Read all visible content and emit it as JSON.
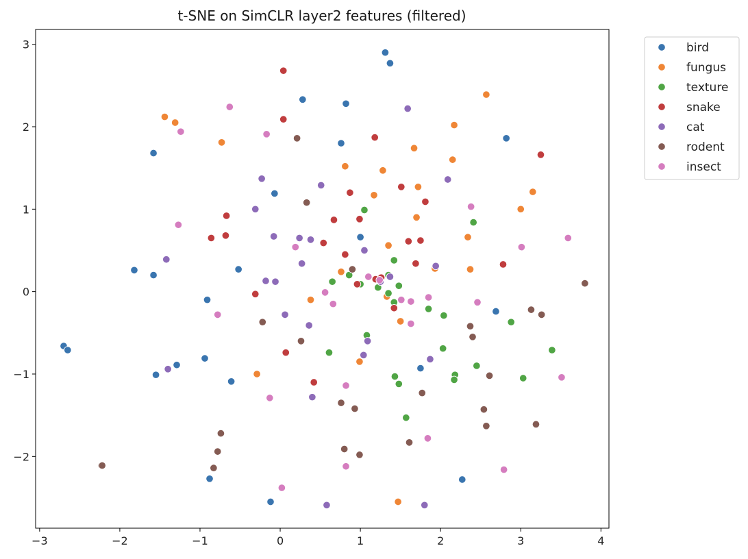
{
  "chart_data": {
    "type": "scatter",
    "title": "t-SNE on SimCLR layer2 features (filtered)",
    "xlabel": "",
    "ylabel": "",
    "xlim": [
      -3.05,
      4.1
    ],
    "ylim": [
      -2.87,
      3.18
    ],
    "xticks": [
      -3,
      -2,
      -1,
      0,
      1,
      2,
      3,
      4
    ],
    "yticks": [
      -2,
      -1,
      0,
      1,
      2,
      3
    ],
    "grid": false,
    "legend_position": "outside upper-right",
    "series": [
      {
        "name": "bird",
        "color": "#3a75af",
        "points": [
          [
            1.31,
            2.9
          ],
          [
            1.37,
            2.77
          ],
          [
            0.28,
            2.33
          ],
          [
            0.82,
            2.28
          ],
          [
            0.76,
            1.8
          ],
          [
            2.82,
            1.86
          ],
          [
            -1.58,
            1.68
          ],
          [
            -0.07,
            1.19
          ],
          [
            1.0,
            0.66
          ],
          [
            -1.82,
            0.26
          ],
          [
            -1.58,
            0.2
          ],
          [
            -0.52,
            0.27
          ],
          [
            -0.91,
            -0.1
          ],
          [
            2.69,
            -0.24
          ],
          [
            -0.94,
            -0.81
          ],
          [
            -1.55,
            -1.01
          ],
          [
            -1.29,
            -0.89
          ],
          [
            -0.61,
            -1.09
          ],
          [
            1.75,
            -0.93
          ],
          [
            -2.7,
            -0.66
          ],
          [
            -2.65,
            -0.71
          ],
          [
            -0.88,
            -2.27
          ],
          [
            -0.12,
            -2.55
          ],
          [
            2.27,
            -2.28
          ],
          [
            1.25,
            0.13
          ]
        ]
      },
      {
        "name": "fungus",
        "color": "#ef8636",
        "points": [
          [
            2.57,
            2.39
          ],
          [
            -1.44,
            2.12
          ],
          [
            -1.31,
            2.05
          ],
          [
            -0.73,
            1.81
          ],
          [
            2.17,
            2.02
          ],
          [
            1.67,
            1.74
          ],
          [
            2.15,
            1.6
          ],
          [
            0.81,
            1.52
          ],
          [
            1.28,
            1.47
          ],
          [
            1.72,
            1.27
          ],
          [
            1.17,
            1.17
          ],
          [
            3.15,
            1.21
          ],
          [
            3.0,
            1.0
          ],
          [
            1.7,
            0.9
          ],
          [
            2.34,
            0.66
          ],
          [
            1.35,
            0.56
          ],
          [
            0.76,
            0.24
          ],
          [
            1.93,
            0.28
          ],
          [
            2.37,
            0.27
          ],
          [
            0.38,
            -0.1
          ],
          [
            1.33,
            -0.06
          ],
          [
            1.5,
            -0.36
          ],
          [
            -0.29,
            -1.0
          ],
          [
            0.99,
            -0.85
          ],
          [
            1.47,
            -2.55
          ]
        ]
      },
      {
        "name": "texture",
        "color": "#50a545",
        "points": [
          [
            1.05,
            0.99
          ],
          [
            2.41,
            0.84
          ],
          [
            1.42,
            0.38
          ],
          [
            0.86,
            0.2
          ],
          [
            1.35,
            0.2
          ],
          [
            0.65,
            0.12
          ],
          [
            1.0,
            0.09
          ],
          [
            1.48,
            0.07
          ],
          [
            1.22,
            0.05
          ],
          [
            1.35,
            -0.02
          ],
          [
            1.42,
            -0.13
          ],
          [
            1.85,
            -0.21
          ],
          [
            2.04,
            -0.29
          ],
          [
            2.88,
            -0.37
          ],
          [
            1.08,
            -0.53
          ],
          [
            0.61,
            -0.74
          ],
          [
            2.03,
            -0.69
          ],
          [
            3.39,
            -0.71
          ],
          [
            2.45,
            -0.9
          ],
          [
            2.18,
            -1.01
          ],
          [
            1.43,
            -1.03
          ],
          [
            2.17,
            -1.07
          ],
          [
            3.03,
            -1.05
          ],
          [
            1.48,
            -1.12
          ],
          [
            1.57,
            -1.53
          ]
        ]
      },
      {
        "name": "snake",
        "color": "#c03d3e",
        "points": [
          [
            0.04,
            2.68
          ],
          [
            0.04,
            2.09
          ],
          [
            1.18,
            1.87
          ],
          [
            3.25,
            1.66
          ],
          [
            0.87,
            1.2
          ],
          [
            1.51,
            1.27
          ],
          [
            1.81,
            1.09
          ],
          [
            -0.67,
            0.92
          ],
          [
            0.67,
            0.87
          ],
          [
            0.99,
            0.88
          ],
          [
            -0.86,
            0.65
          ],
          [
            -0.68,
            0.68
          ],
          [
            0.54,
            0.59
          ],
          [
            1.6,
            0.61
          ],
          [
            1.75,
            0.62
          ],
          [
            0.81,
            0.45
          ],
          [
            2.78,
            0.33
          ],
          [
            1.69,
            0.34
          ],
          [
            1.19,
            0.15
          ],
          [
            1.26,
            0.17
          ],
          [
            0.96,
            0.09
          ],
          [
            -0.31,
            -0.03
          ],
          [
            1.42,
            -0.2
          ],
          [
            0.07,
            -0.74
          ],
          [
            0.42,
            -1.1
          ]
        ]
      },
      {
        "name": "cat",
        "color": "#8d6bb8",
        "points": [
          [
            1.59,
            2.22
          ],
          [
            2.09,
            1.36
          ],
          [
            -0.23,
            1.37
          ],
          [
            0.51,
            1.29
          ],
          [
            -0.31,
            1.0
          ],
          [
            0.24,
            0.65
          ],
          [
            0.38,
            0.63
          ],
          [
            -0.08,
            0.67
          ],
          [
            1.05,
            0.5
          ],
          [
            -1.42,
            0.39
          ],
          [
            0.27,
            0.34
          ],
          [
            1.94,
            0.31
          ],
          [
            -0.18,
            0.13
          ],
          [
            -0.06,
            0.12
          ],
          [
            1.25,
            0.12
          ],
          [
            1.37,
            0.18
          ],
          [
            0.06,
            -0.28
          ],
          [
            0.36,
            -0.41
          ],
          [
            1.09,
            -0.6
          ],
          [
            1.04,
            -0.77
          ],
          [
            1.87,
            -0.82
          ],
          [
            -1.4,
            -0.94
          ],
          [
            0.4,
            -1.28
          ],
          [
            0.58,
            -2.59
          ],
          [
            1.8,
            -2.59
          ]
        ]
      },
      {
        "name": "rodent",
        "color": "#845b53",
        "points": [
          [
            0.21,
            1.86
          ],
          [
            0.33,
            1.08
          ],
          [
            3.8,
            0.1
          ],
          [
            0.9,
            0.27
          ],
          [
            3.13,
            -0.22
          ],
          [
            3.26,
            -0.28
          ],
          [
            -0.22,
            -0.37
          ],
          [
            2.37,
            -0.42
          ],
          [
            2.4,
            -0.55
          ],
          [
            0.26,
            -0.6
          ],
          [
            2.61,
            -1.02
          ],
          [
            1.77,
            -1.23
          ],
          [
            0.76,
            -1.35
          ],
          [
            0.93,
            -1.42
          ],
          [
            2.54,
            -1.43
          ],
          [
            2.57,
            -1.63
          ],
          [
            3.19,
            -1.61
          ],
          [
            1.61,
            -1.83
          ],
          [
            -0.74,
            -1.72
          ],
          [
            -0.78,
            -1.94
          ],
          [
            0.8,
            -1.91
          ],
          [
            0.99,
            -1.98
          ],
          [
            -0.83,
            -2.14
          ],
          [
            -2.23,
            -2.11
          ],
          [
            -2.22,
            -2.11
          ]
        ]
      },
      {
        "name": "insect",
        "color": "#d57dbf",
        "points": [
          [
            -0.63,
            2.24
          ],
          [
            -1.24,
            1.94
          ],
          [
            -0.17,
            1.91
          ],
          [
            -1.27,
            0.81
          ],
          [
            2.38,
            1.03
          ],
          [
            0.19,
            0.54
          ],
          [
            3.01,
            0.54
          ],
          [
            3.59,
            0.65
          ],
          [
            1.1,
            0.18
          ],
          [
            1.63,
            -0.12
          ],
          [
            1.51,
            -0.1
          ],
          [
            0.56,
            -0.01
          ],
          [
            0.66,
            -0.15
          ],
          [
            1.85,
            -0.07
          ],
          [
            2.46,
            -0.13
          ],
          [
            -0.78,
            -0.28
          ],
          [
            1.63,
            -0.39
          ],
          [
            -0.13,
            -1.29
          ],
          [
            0.82,
            -1.14
          ],
          [
            3.51,
            -1.04
          ],
          [
            1.84,
            -1.78
          ],
          [
            0.82,
            -2.12
          ],
          [
            2.79,
            -2.16
          ],
          [
            0.02,
            -2.38
          ],
          [
            1.24,
            0.14
          ]
        ]
      }
    ]
  }
}
